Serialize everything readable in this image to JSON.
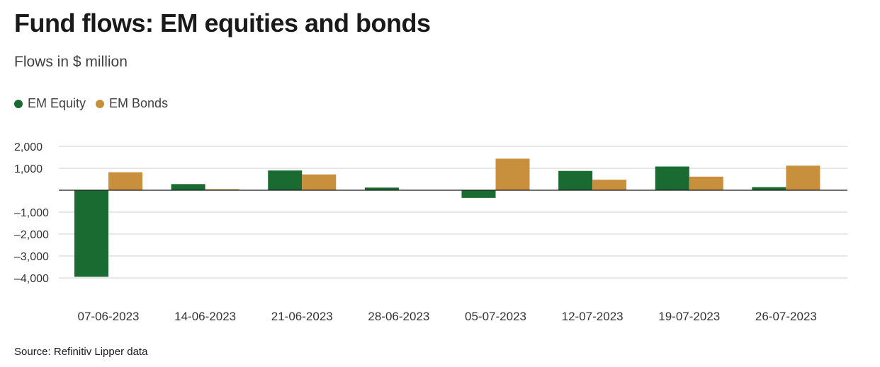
{
  "title": "Fund flows: EM equities and bonds",
  "subtitle": "Flows in $ million",
  "source": "Source: Refinitiv Lipper data",
  "legend": [
    {
      "label": "EM Equity",
      "color": "#1a6b32"
    },
    {
      "label": "EM Bonds",
      "color": "#c8903c"
    }
  ],
  "chart_data": {
    "type": "bar",
    "categories": [
      "07-06-2023",
      "14-06-2023",
      "21-06-2023",
      "28-06-2023",
      "05-07-2023",
      "12-07-2023",
      "19-07-2023",
      "26-07-2023"
    ],
    "series": [
      {
        "name": "EM Equity",
        "color": "#1a6b32",
        "values": [
          -3950,
          280,
          900,
          120,
          -350,
          880,
          1080,
          140
        ]
      },
      {
        "name": "EM Bonds",
        "color": "#c8903c",
        "values": [
          820,
          50,
          720,
          0,
          1440,
          480,
          620,
          1120
        ]
      }
    ],
    "yticks": [
      2000,
      1000,
      -1000,
      -2000,
      -3000,
      -4000
    ],
    "ytick_labels": [
      "2,000",
      "1,000",
      "–1,000",
      "–2,000",
      "–3,000",
      "–4,000"
    ],
    "ylim": [
      -4000,
      2000
    ],
    "grid": true,
    "legend_position": "top-left"
  }
}
